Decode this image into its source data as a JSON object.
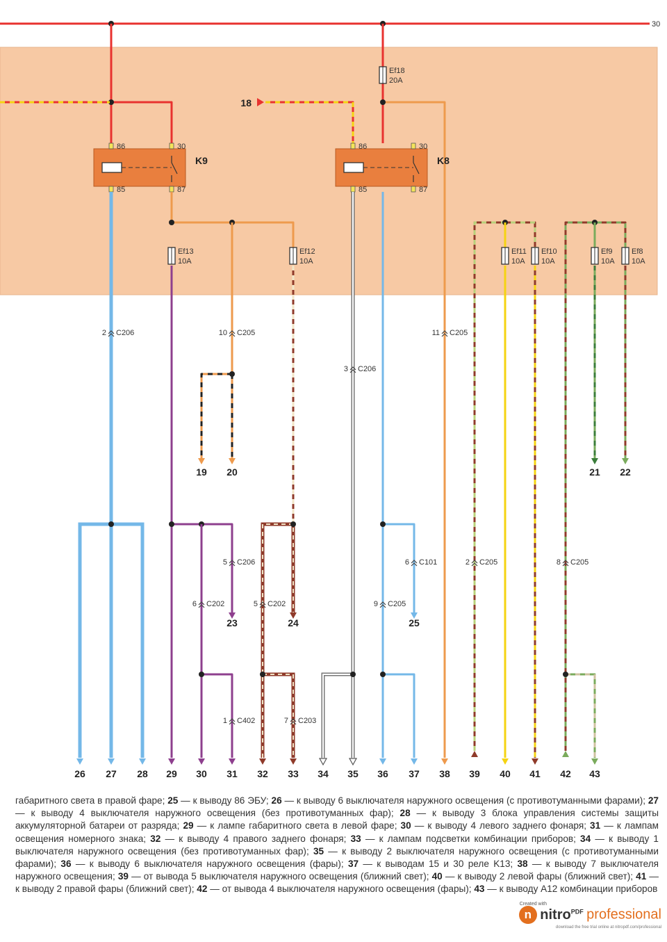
{
  "diagram": {
    "relays": [
      {
        "id": "k9",
        "name": "K9",
        "pins": [
          "86",
          "30",
          "85",
          "87"
        ]
      },
      {
        "id": "k8",
        "name": "K8",
        "pins": [
          "86",
          "30",
          "85",
          "87"
        ]
      }
    ],
    "fuses": [
      {
        "id": "ef18",
        "name": "Ef18",
        "rating": "20A"
      },
      {
        "id": "ef13",
        "name": "Ef13",
        "rating": "10A"
      },
      {
        "id": "ef12",
        "name": "Ef12",
        "rating": "10A"
      },
      {
        "id": "ef11",
        "name": "Ef11",
        "rating": "10A"
      },
      {
        "id": "ef10",
        "name": "Ef10",
        "rating": "10A"
      },
      {
        "id": "ef9",
        "name": "Ef9",
        "rating": "10A"
      },
      {
        "id": "ef8",
        "name": "Ef8",
        "rating": "10A"
      }
    ],
    "connectors": [
      {
        "id": "c206a",
        "pin": "2",
        "name": "C206"
      },
      {
        "id": "c205a",
        "pin": "10",
        "name": "C205"
      },
      {
        "id": "c206b",
        "pin": "3",
        "name": "C206"
      },
      {
        "id": "c205b",
        "pin": "11",
        "name": "C205"
      },
      {
        "id": "c206c",
        "pin": "5",
        "name": "C206"
      },
      {
        "id": "c202a",
        "pin": "6",
        "name": "C202"
      },
      {
        "id": "c202b",
        "pin": "5",
        "name": "C202"
      },
      {
        "id": "c101",
        "pin": "6",
        "name": "C101"
      },
      {
        "id": "c205c",
        "pin": "9",
        "name": "C205"
      },
      {
        "id": "c205d",
        "pin": "2",
        "name": "C205"
      },
      {
        "id": "c205e",
        "pin": "8",
        "name": "C205"
      },
      {
        "id": "c402",
        "pin": "1",
        "name": "C402"
      },
      {
        "id": "c203",
        "pin": "7",
        "name": "C203"
      }
    ],
    "labels": {
      "bus": "30",
      "input": "18",
      "mid": [
        "19",
        "20",
        "21",
        "22",
        "23",
        "24",
        "25"
      ],
      "bottom": [
        "26",
        "27",
        "28",
        "29",
        "30",
        "31",
        "32",
        "33",
        "34",
        "35",
        "36",
        "37",
        "38",
        "39",
        "40",
        "41",
        "42",
        "43"
      ]
    },
    "colors": {
      "red": "#e8322f",
      "orange": "#ee9a4d",
      "yellow": "#f5d312",
      "blue": "#74b8e8",
      "purple": "#8e3f8e",
      "darkred": "#8f3a2a",
      "green": "#7aab5c",
      "panel": "#f7c9a4",
      "relay": "#e97f3e"
    }
  },
  "legend": [
    {
      "num": "",
      "text": "габаритного света в правой фаре; "
    },
    {
      "num": "25",
      "text": " — к выводу 86 ЭБУ; "
    },
    {
      "num": "26",
      "text": " — к выводу 6 выключателя наружного освещения (с противотуманными фарами); "
    },
    {
      "num": "27",
      "text": " — к выводу 4 выключателя наружного освещения (без противотуманных фар); "
    },
    {
      "num": "28",
      "text": " — к выводу 3 блока управления системы защиты аккумуляторной батареи от разряда; "
    },
    {
      "num": "29",
      "text": " — к лампе габаритного света в левой фаре; "
    },
    {
      "num": "30",
      "text": " — к выводу 4 левого заднего фонаря; "
    },
    {
      "num": "31",
      "text": " — к лампам освещения номерного знака; "
    },
    {
      "num": "32",
      "text": " — к выводу 4 правого заднего фонаря; "
    },
    {
      "num": "33",
      "text": " — к лампам подсветки комбинации приборов; "
    },
    {
      "num": "34",
      "text": " — к выводу 1 выключателя наружного освещения (без противотуманных фар); "
    },
    {
      "num": "35",
      "text": " — к выводу 2 выключателя наружного освещения (с противотуманными фарами); "
    },
    {
      "num": "36",
      "text": " — к выводу 6 выключателя наружного освещения (фары); "
    },
    {
      "num": "37",
      "text": " — к выводам 15 и 30 реле K13; "
    },
    {
      "num": "38",
      "text": " — к выводу 7 выключателя наружного освещения; "
    },
    {
      "num": "39",
      "text": " — от вывода 5 выключателя наружного освещения (ближний свет); "
    },
    {
      "num": "40",
      "text": " — к выводу 2 левой фары (ближний свет); "
    },
    {
      "num": "41",
      "text": " — к выводу 2 правой фары (ближний свет); "
    },
    {
      "num": "42",
      "text": " — от вывода 4 выключателя наружного освещения (фары); "
    },
    {
      "num": "43",
      "text": " — к выводу А12 комбинации приборов"
    }
  ],
  "watermark": {
    "created": "Created with",
    "logo_letter": "n",
    "brand": "nitro",
    "brand_sup": "PDF",
    "suffix": "professional",
    "small": "download the free trial online at nitropdf.com/professional"
  }
}
